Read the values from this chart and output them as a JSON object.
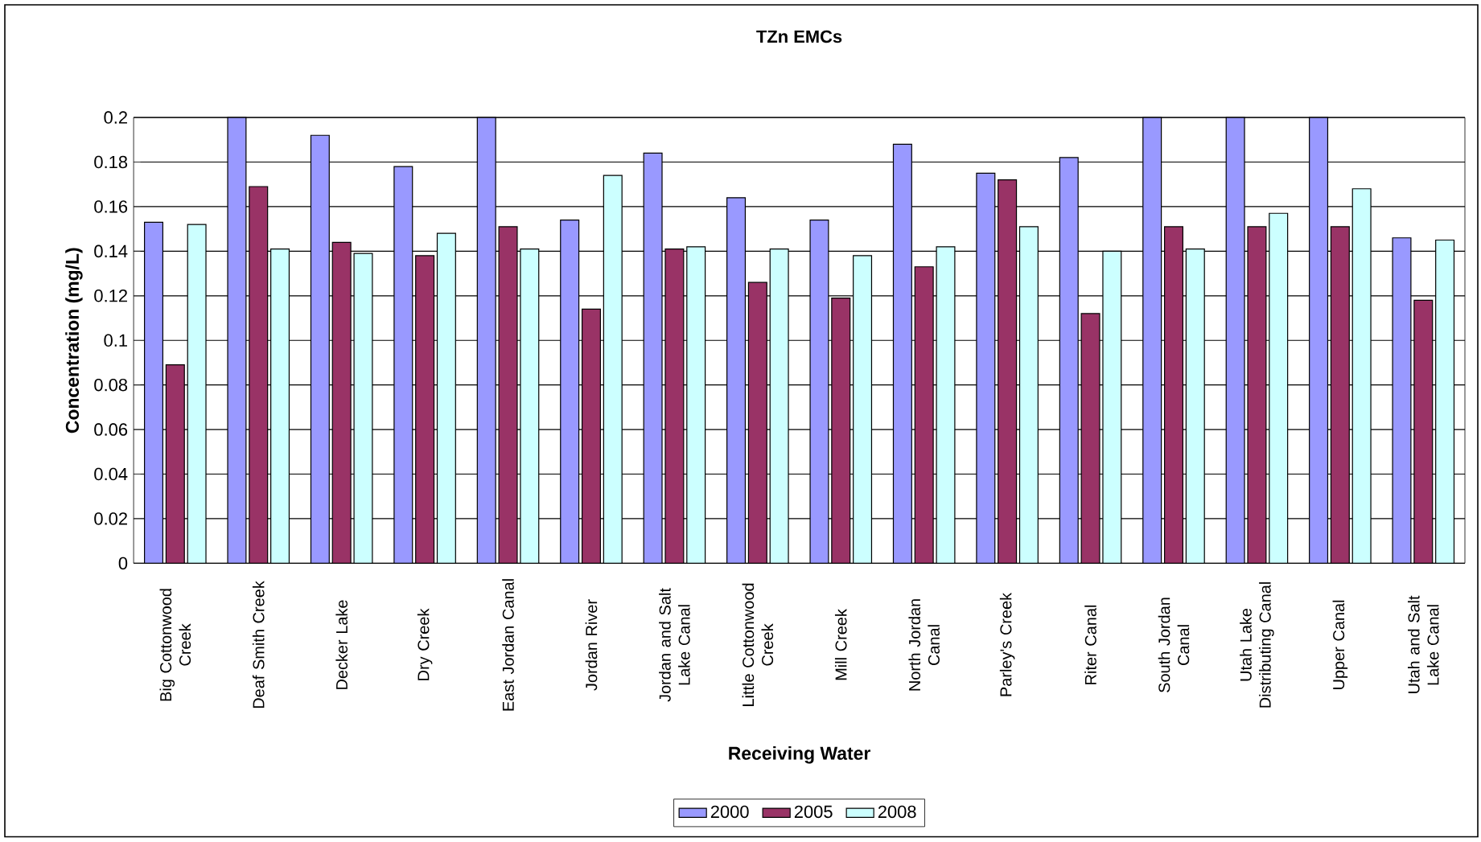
{
  "chart_data": {
    "type": "bar",
    "title": "TZn EMCs",
    "xlabel": "Receiving Water",
    "ylabel": "Concentration (mg/L)",
    "categories": [
      "Big Cottonwood Creek",
      "Deaf Smith Creek",
      "Decker Lake",
      "Dry Creek",
      "East Jordan Canal",
      "Jordan River",
      "Jordan and Salt Lake Canal",
      "Little Cottonwood Creek",
      "Mill Creek",
      "North Jordan Canal",
      "Parley's Creek",
      "Riter Canal",
      "South Jordan Canal",
      "Utah Lake Distributing Canal",
      "Upper Canal",
      "Utah and Salt Lake Canal"
    ],
    "series": [
      {
        "name": "2000",
        "color": "#9999ff",
        "values": [
          0.153,
          0.2,
          0.192,
          0.178,
          0.2,
          0.154,
          0.184,
          0.164,
          0.154,
          0.188,
          0.175,
          0.182,
          0.2,
          0.2,
          0.2,
          0.146
        ]
      },
      {
        "name": "2005",
        "color": "#993366",
        "values": [
          0.089,
          0.169,
          0.144,
          0.138,
          0.151,
          0.114,
          0.141,
          0.126,
          0.119,
          0.133,
          0.172,
          0.112,
          0.151,
          0.151,
          0.151,
          0.118
        ]
      },
      {
        "name": "2008",
        "color": "#ccffff",
        "values": [
          0.152,
          0.141,
          0.139,
          0.148,
          0.141,
          0.174,
          0.142,
          0.141,
          0.138,
          0.142,
          0.151,
          0.14,
          0.141,
          0.157,
          0.168,
          0.145
        ]
      }
    ],
    "ylim": [
      0,
      0.2
    ],
    "yticks": [
      0,
      0.02,
      0.04,
      0.06,
      0.08,
      0.1,
      0.12,
      0.14,
      0.16,
      0.18,
      0.2
    ],
    "grid": "y",
    "legend": "bottom"
  }
}
